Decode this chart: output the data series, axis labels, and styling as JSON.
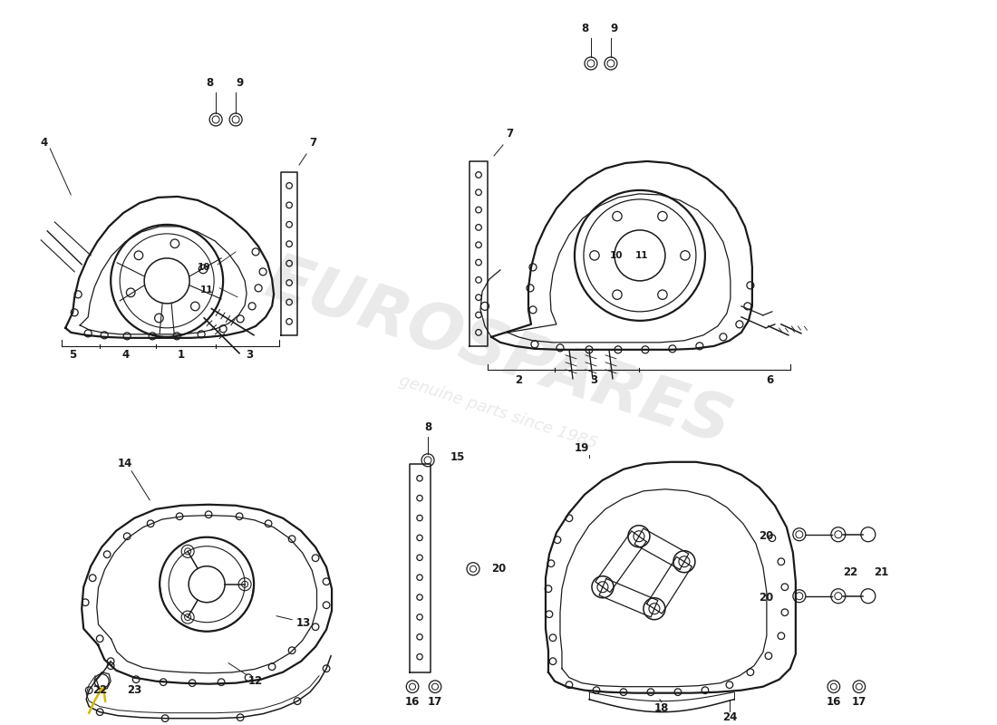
{
  "background_color": "#ffffff",
  "line_color": "#1a1a1a",
  "watermark_text": "EUROSPARES",
  "watermark_subtext": "genuine parts since 1985",
  "watermark_color": "#c8c8c8",
  "watermark_alpha": 0.38,
  "fig_width": 11.0,
  "fig_height": 8.0,
  "dpi": 100
}
